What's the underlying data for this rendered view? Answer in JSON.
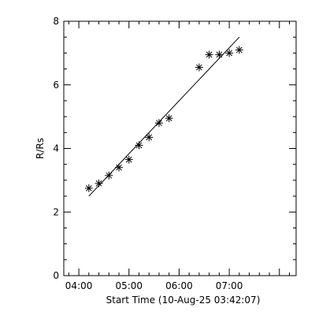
{
  "chart_data": {
    "type": "scatter",
    "xlabel": "Start Time (10-Aug-25 03:42:07)",
    "ylabel": "R/Rs",
    "x_ticks": [
      "04:00",
      "05:00",
      "06:00",
      "07:00"
    ],
    "y_ticks": [
      "0",
      "2",
      "4",
      "6",
      "8"
    ],
    "xlim": [
      "03:42",
      "08:20"
    ],
    "ylim": [
      0,
      8
    ],
    "grid": false,
    "series": [
      {
        "marker": "asterisk",
        "points": [
          {
            "x": "04:12",
            "y": 2.75
          },
          {
            "x": "04:24",
            "y": 2.9
          },
          {
            "x": "04:36",
            "y": 3.15
          },
          {
            "x": "04:48",
            "y": 3.4
          },
          {
            "x": "05:00",
            "y": 3.65
          },
          {
            "x": "05:12",
            "y": 4.1
          },
          {
            "x": "05:24",
            "y": 4.35
          },
          {
            "x": "05:36",
            "y": 4.8
          },
          {
            "x": "05:48",
            "y": 4.95
          },
          {
            "x": "06:24",
            "y": 6.55
          },
          {
            "x": "06:36",
            "y": 6.95
          },
          {
            "x": "06:48",
            "y": 6.95
          },
          {
            "x": "07:00",
            "y": 7.0
          },
          {
            "x": "07:12",
            "y": 7.1
          }
        ]
      }
    ],
    "fit_line": [
      {
        "x": "04:12",
        "y": 2.5
      },
      {
        "x": "07:12",
        "y": 7.5
      }
    ]
  }
}
